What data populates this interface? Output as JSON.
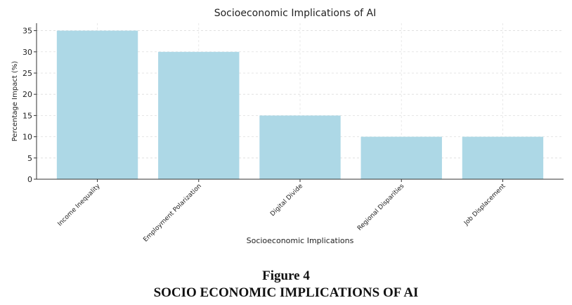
{
  "chart_data": {
    "type": "bar",
    "title": "Socioeconomic Implications of AI",
    "categories": [
      "Income Inequality",
      "Employment Polarization",
      "Digital Divide",
      "Regional Disparities",
      "Job Displacement"
    ],
    "values": [
      35,
      30,
      15,
      10,
      10
    ],
    "color": "#add8e6",
    "ylim": [
      0,
      36.75
    ],
    "yticks": [
      0,
      5,
      10,
      15,
      20,
      25,
      30,
      35
    ],
    "grid": true,
    "x_label": "Socioeconomic Implications",
    "y_label": "Percentage Impact (%)"
  },
  "caption": {
    "label": "Figure 4",
    "title": "SOCIO ECONOMIC IMPLICATIONS OF AI"
  }
}
